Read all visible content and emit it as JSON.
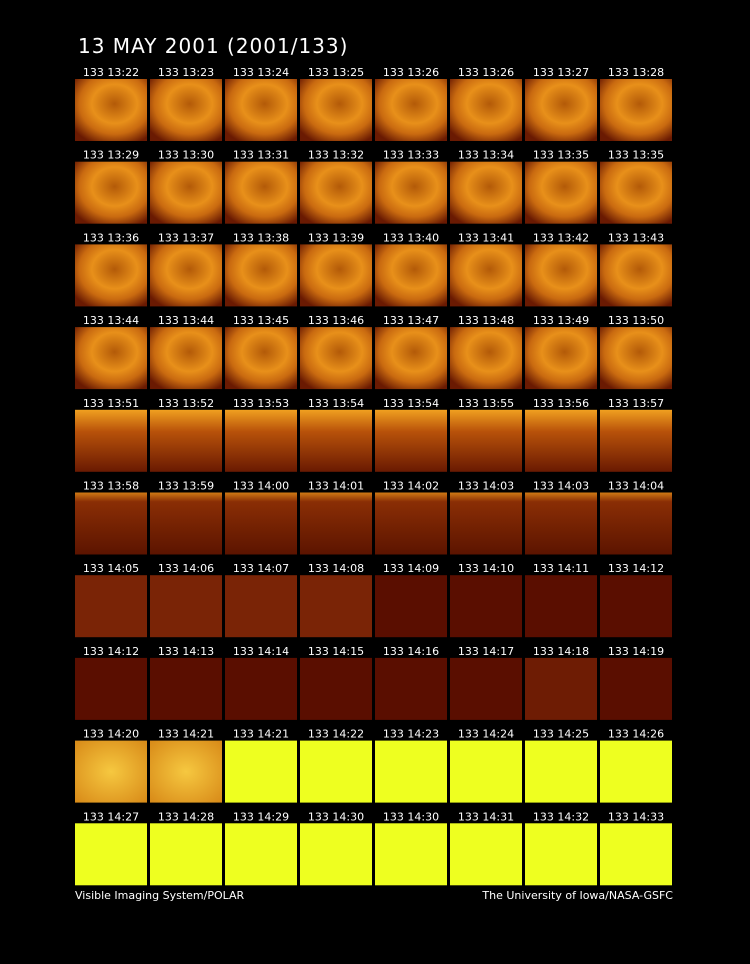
{
  "header": {
    "title": "13 MAY 2001  (2001/133)"
  },
  "frames": [
    [
      "133 13:22",
      "133 13:23",
      "133 13:24",
      "133 13:25",
      "133 13:26",
      "133 13:26",
      "133 13:27",
      "133 13:28"
    ],
    [
      "133 13:29",
      "133 13:30",
      "133 13:31",
      "133 13:32",
      "133 13:33",
      "133 13:34",
      "133 13:35",
      "133 13:35"
    ],
    [
      "133 13:36",
      "133 13:37",
      "133 13:38",
      "133 13:39",
      "133 13:40",
      "133 13:41",
      "133 13:42",
      "133 13:43"
    ],
    [
      "133 13:44",
      "133 13:44",
      "133 13:45",
      "133 13:46",
      "133 13:47",
      "133 13:48",
      "133 13:49",
      "133 13:50"
    ],
    [
      "133 13:51",
      "133 13:52",
      "133 13:53",
      "133 13:54",
      "133 13:54",
      "133 13:55",
      "133 13:56",
      "133 13:57"
    ],
    [
      "133 13:58",
      "133 13:59",
      "133 14:00",
      "133 14:01",
      "133 14:02",
      "133 14:03",
      "133 14:03",
      "133 14:04"
    ],
    [
      "133 14:05",
      "133 14:06",
      "133 14:07",
      "133 14:08",
      "133 14:09",
      "133 14:10",
      "133 14:11",
      "133 14:12"
    ],
    [
      "133 14:12",
      "133 14:13",
      "133 14:14",
      "133 14:15",
      "133 14:16",
      "133 14:17",
      "133 14:18",
      "133 14:19"
    ],
    [
      "133 14:20",
      "133 14:21",
      "133 14:21",
      "133 14:22",
      "133 14:23",
      "133 14:24",
      "133 14:25",
      "133 14:26"
    ],
    [
      "133 14:27",
      "133 14:28",
      "133 14:29",
      "133 14:30",
      "133 14:30",
      "133 14:31",
      "133 14:32",
      "133 14:33"
    ]
  ],
  "footer": {
    "left": "Visible Imaging System/POLAR",
    "right": "The University of Iowa/NASA-GSFC"
  }
}
